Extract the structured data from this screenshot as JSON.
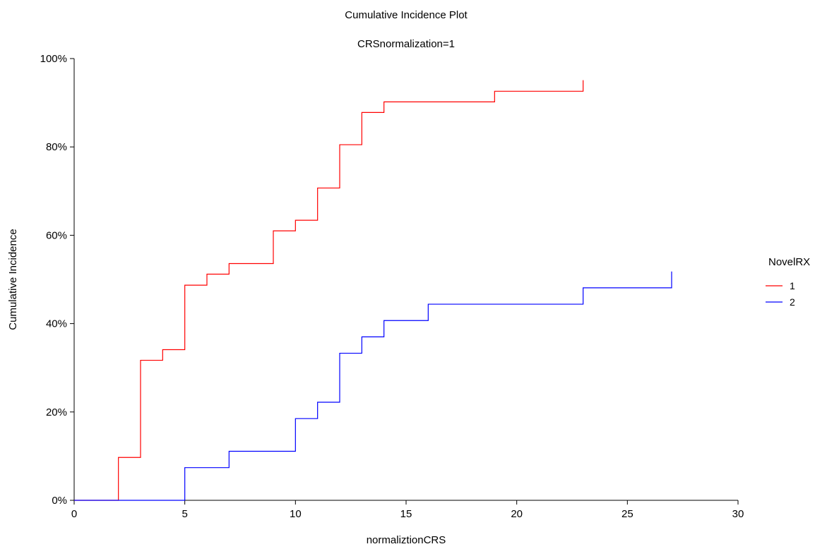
{
  "chart_data": {
    "type": "line",
    "step": true,
    "title": "Cumulative Incidence Plot",
    "subtitle": "CRSnormalization=1",
    "xlabel": "normaliztionCRS",
    "ylabel": "Cumulative Incidence",
    "xlim": [
      0,
      30
    ],
    "ylim": [
      0,
      100
    ],
    "x_ticks": [
      0,
      5,
      10,
      15,
      20,
      25,
      30
    ],
    "y_ticks": [
      0,
      20,
      40,
      60,
      80,
      100
    ],
    "y_tick_labels": [
      "0%",
      "20%",
      "40%",
      "60%",
      "80%",
      "100%"
    ],
    "grid": false,
    "legend": {
      "title": "NovelRX",
      "position": "right"
    },
    "series": [
      {
        "name": "1",
        "color": "#ff0000",
        "x": [
          0,
          2,
          3,
          4,
          5,
          6,
          7,
          9,
          10,
          11,
          12,
          13,
          14,
          19,
          23
        ],
        "y": [
          0,
          9.7,
          31.7,
          34.1,
          48.7,
          51.2,
          53.6,
          61.0,
          63.4,
          70.7,
          80.5,
          87.8,
          90.2,
          92.6,
          95.1
        ]
      },
      {
        "name": "2",
        "color": "#0000ff",
        "x": [
          0,
          5,
          7,
          10,
          11,
          12,
          13,
          14,
          16,
          23,
          27
        ],
        "y": [
          0,
          7.4,
          11.1,
          18.5,
          22.2,
          33.3,
          37.0,
          40.7,
          44.4,
          48.1,
          51.8
        ]
      }
    ]
  }
}
